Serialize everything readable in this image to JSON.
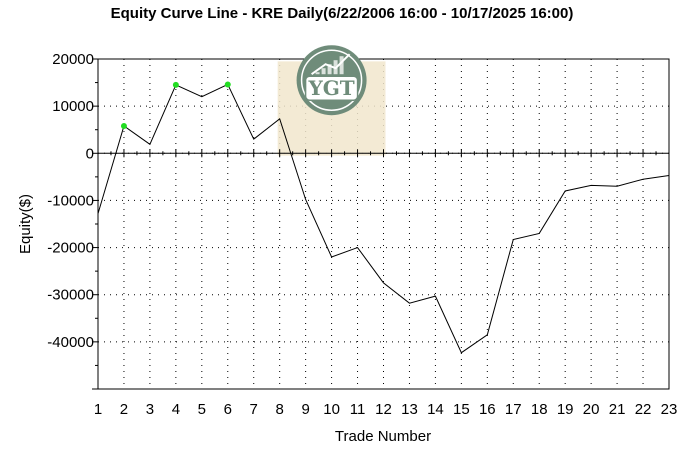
{
  "chart_data": {
    "type": "line",
    "title": "Equity Curve Line - KRE Daily(6/22/2006 16:00 - 10/17/2025 16:00)",
    "xlabel": "Trade Number",
    "ylabel": "Equity($)",
    "xlim": [
      1,
      23
    ],
    "ylim": [
      -50000,
      20000
    ],
    "x_ticks": [
      1,
      2,
      3,
      4,
      5,
      6,
      7,
      8,
      9,
      10,
      11,
      12,
      13,
      14,
      15,
      16,
      17,
      18,
      19,
      20,
      21,
      22,
      23
    ],
    "y_ticks": [
      20000,
      10000,
      0,
      -10000,
      -20000,
      -30000,
      -40000
    ],
    "grid": true,
    "legend": "none",
    "series": [
      {
        "x": [
          1,
          2,
          3,
          4,
          5,
          6,
          7,
          8,
          9,
          10,
          11,
          12,
          13,
          14,
          15,
          16,
          17,
          18,
          19,
          20,
          21,
          22,
          23
        ],
        "values": [
          -12800,
          5800,
          1900,
          14500,
          12000,
          14600,
          3000,
          7300,
          -9800,
          -22000,
          -20000,
          -27500,
          -31800,
          -30300,
          -42300,
          -38500,
          -18300,
          -17000,
          -8000,
          -6800,
          -7000,
          -5500,
          -4700
        ],
        "color": "#000000",
        "highlight_color": "#22dd22",
        "highlighted_points": [
          2,
          4,
          6
        ]
      }
    ]
  },
  "watermark": {
    "text": "YGT",
    "bg_color": "#f1e6cc",
    "ring_color": "#6f8c7a",
    "badge_color": "#ffffff"
  }
}
